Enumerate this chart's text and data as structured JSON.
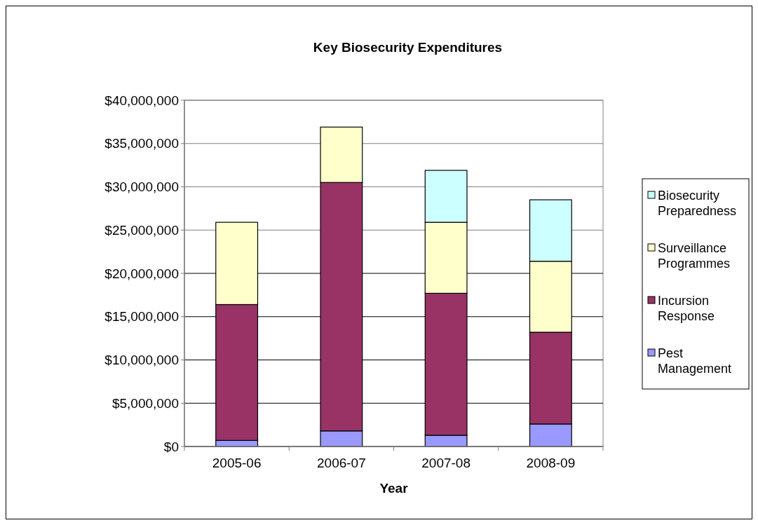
{
  "chart_data": {
    "type": "bar",
    "title": "Key Biosecurity Expenditures",
    "xlabel": "Year",
    "categories": [
      "2005-06",
      "2006-07",
      "2007-08",
      "2008-09"
    ],
    "stacked": true,
    "series": [
      {
        "name": "Pest Management",
        "color": "#9999ff",
        "values": [
          700000,
          1800000,
          1300000,
          2600000
        ]
      },
      {
        "name": "Incursion Response",
        "color": "#993366",
        "values": [
          15700000,
          28700000,
          16400000,
          10600000
        ]
      },
      {
        "name": "Surveillance Programmes",
        "color": "#ffffcc",
        "values": [
          9500000,
          6400000,
          8200000,
          8200000
        ]
      },
      {
        "name": "Biosecurity Preparedness",
        "color": "#ccffff",
        "values": [
          null,
          null,
          6000000,
          7100000
        ]
      }
    ],
    "ylim": [
      0,
      40000000
    ],
    "yticks": [
      {
        "value": 0,
        "label": "$0"
      },
      {
        "value": 5000000,
        "label": "$5,000,000"
      },
      {
        "value": 10000000,
        "label": "$10,000,000"
      },
      {
        "value": 15000000,
        "label": "$15,000,000"
      },
      {
        "value": 20000000,
        "label": "$20,000,000"
      },
      {
        "value": 25000000,
        "label": "$25,000,000"
      },
      {
        "value": 30000000,
        "label": "$30,000,000"
      },
      {
        "value": 35000000,
        "label": "$35,000,000"
      },
      {
        "value": 40000000,
        "label": "$40,000,000"
      }
    ],
    "grid": "y",
    "legend": "right"
  }
}
